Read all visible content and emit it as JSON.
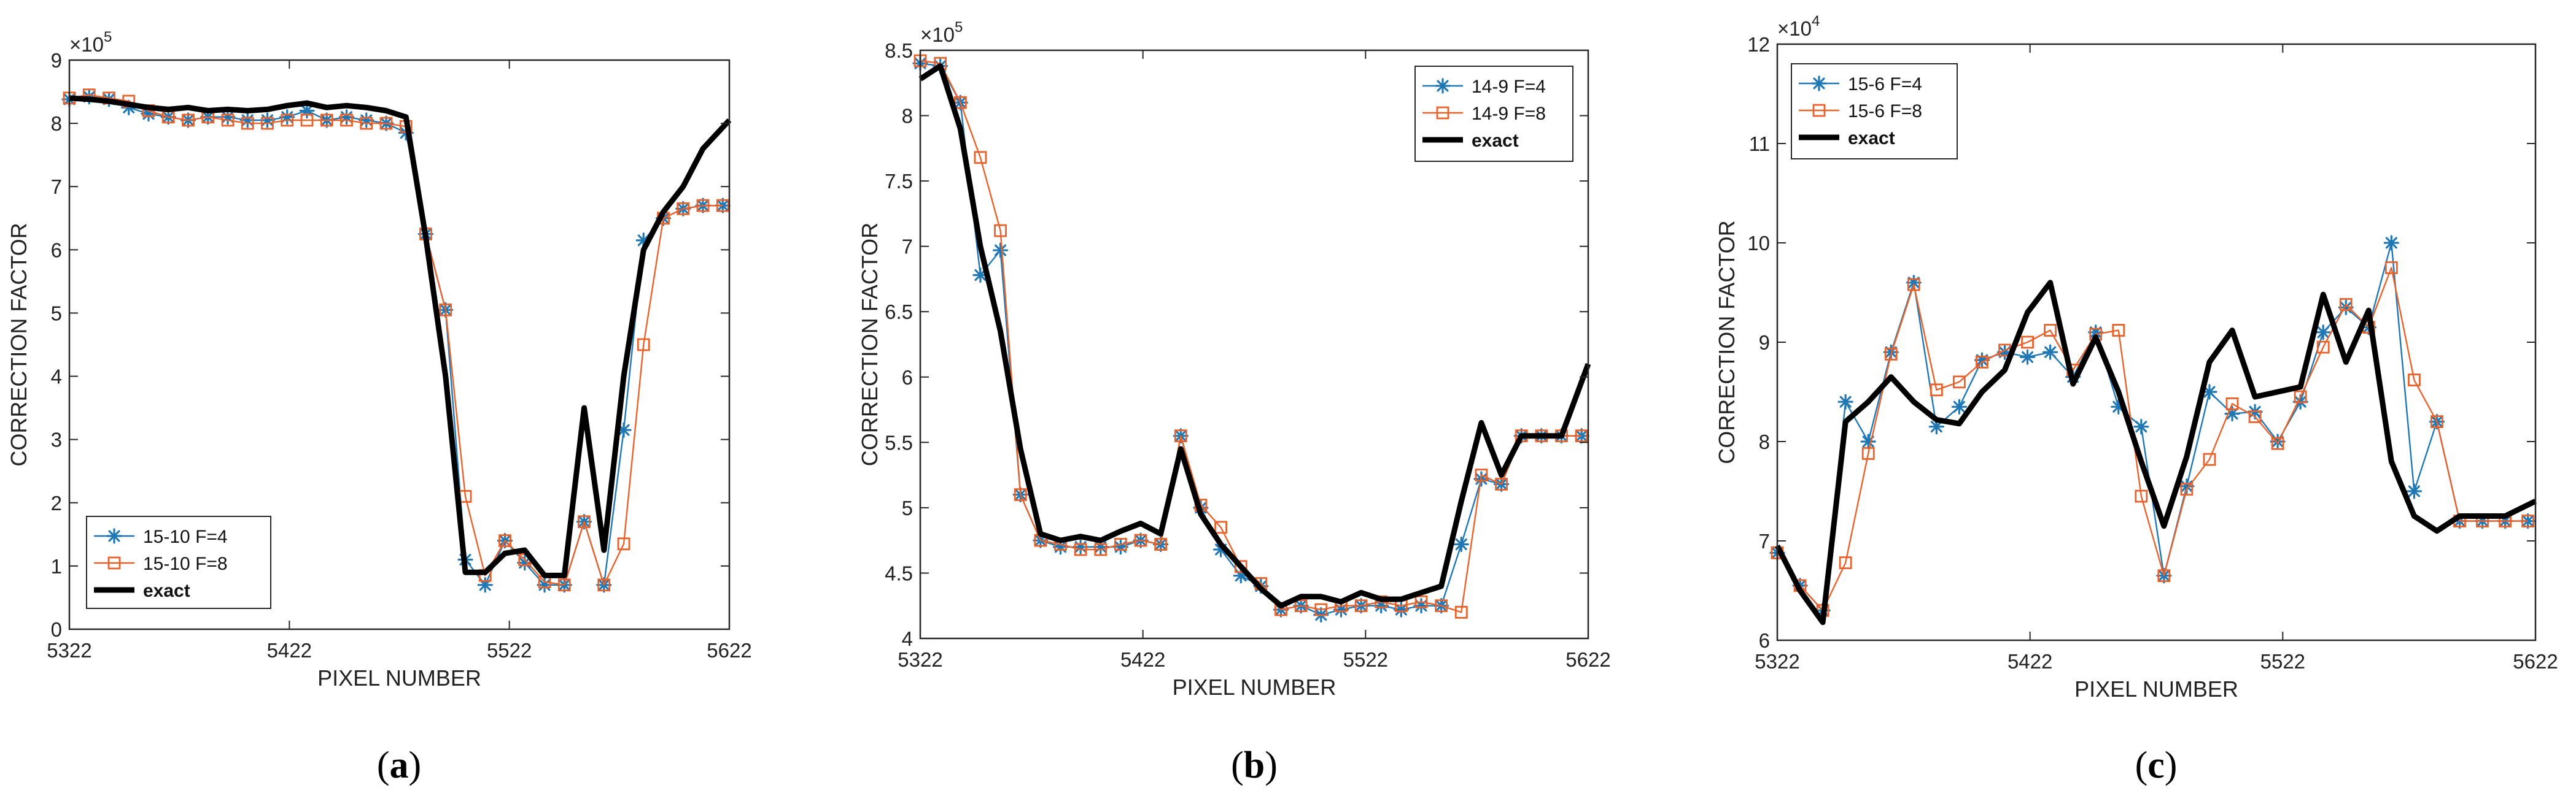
{
  "colors": {
    "f4": "#1f77b4",
    "f8": "#e8622c",
    "exact": "#000000"
  },
  "chart_data": [
    {
      "type": "line",
      "caption_open": "(",
      "caption_letter": "a",
      "caption_close": ")",
      "xlabel": "PIXEL NUMBER",
      "ylabel": "CORRECTION FACTOR",
      "exponent_base": "×10",
      "exponent_power": "5",
      "xlim": [
        5322,
        5622
      ],
      "ylim": [
        0,
        9
      ],
      "xticks": [
        5322,
        5422,
        5522,
        5622
      ],
      "yticks": [
        0,
        1,
        2,
        3,
        4,
        5,
        6,
        7,
        8,
        9
      ],
      "legend_position": "bottom-left",
      "series": [
        {
          "name": "15-10 F=4",
          "marker": "star",
          "color_key": "f4",
          "x": [
            5322,
            5331,
            5340,
            5349,
            5358,
            5367,
            5376,
            5385,
            5394,
            5403,
            5412,
            5421,
            5430,
            5439,
            5448,
            5457,
            5466,
            5475,
            5484,
            5493,
            5502,
            5511,
            5520,
            5529,
            5538,
            5547,
            5556,
            5565,
            5574,
            5583,
            5592,
            5601,
            5610,
            5619
          ],
          "y": [
            8.38,
            8.42,
            8.38,
            8.25,
            8.15,
            8.1,
            8.05,
            8.1,
            8.1,
            8.05,
            8.05,
            8.1,
            8.2,
            8.05,
            8.1,
            8.05,
            8.0,
            7.85,
            6.25,
            5.05,
            1.1,
            0.7,
            1.4,
            1.05,
            0.7,
            0.7,
            1.7,
            0.7,
            3.15,
            6.15,
            6.5,
            6.65,
            6.7,
            6.7
          ]
        },
        {
          "name": "15-10 F=8",
          "marker": "square",
          "color_key": "f8",
          "x": [
            5322,
            5331,
            5340,
            5349,
            5358,
            5367,
            5376,
            5385,
            5394,
            5403,
            5412,
            5421,
            5430,
            5439,
            5448,
            5457,
            5466,
            5475,
            5484,
            5493,
            5502,
            5511,
            5520,
            5529,
            5538,
            5547,
            5556,
            5565,
            5574,
            5583,
            5592,
            5601,
            5610,
            5619
          ],
          "y": [
            8.4,
            8.45,
            8.4,
            8.35,
            8.2,
            8.1,
            8.05,
            8.1,
            8.05,
            8.0,
            8.0,
            8.05,
            8.05,
            8.05,
            8.05,
            8.0,
            8.0,
            7.95,
            6.25,
            5.05,
            2.1,
            0.85,
            1.4,
            1.1,
            0.75,
            0.7,
            1.7,
            0.7,
            1.35,
            4.5,
            6.5,
            6.65,
            6.7,
            6.7
          ]
        },
        {
          "name": "exact",
          "marker": "none",
          "color_key": "exact",
          "x": [
            5322,
            5331,
            5340,
            5349,
            5358,
            5367,
            5376,
            5385,
            5394,
            5403,
            5412,
            5421,
            5430,
            5439,
            5448,
            5457,
            5466,
            5475,
            5484,
            5493,
            5502,
            5511,
            5520,
            5529,
            5538,
            5547,
            5556,
            5565,
            5574,
            5583,
            5592,
            5601,
            5610,
            5622
          ],
          "y": [
            8.4,
            8.38,
            8.35,
            8.3,
            8.25,
            8.22,
            8.25,
            8.2,
            8.22,
            8.2,
            8.22,
            8.28,
            8.32,
            8.25,
            8.28,
            8.25,
            8.2,
            8.1,
            6.2,
            4.0,
            0.9,
            0.9,
            1.2,
            1.25,
            0.85,
            0.85,
            3.5,
            1.25,
            4.0,
            6.0,
            6.6,
            7.0,
            7.6,
            8.05
          ]
        }
      ]
    },
    {
      "type": "line",
      "caption_open": "(",
      "caption_letter": "b",
      "caption_close": ")",
      "xlabel": "PIXEL NUMBER",
      "ylabel": "CORRECTION FACTOR",
      "exponent_base": "×10",
      "exponent_power": "5",
      "xlim": [
        5322,
        5622
      ],
      "ylim": [
        4,
        8.5
      ],
      "xticks": [
        5322,
        5422,
        5522,
        5622
      ],
      "yticks": [
        4,
        4.5,
        5,
        5.5,
        6,
        6.5,
        7,
        7.5,
        8,
        8.5
      ],
      "ytick_labels": [
        "4",
        "4.5",
        "5",
        "5.5",
        "6",
        "6.5",
        "7",
        "7.5",
        "8",
        "8.5"
      ],
      "legend_position": "top-right",
      "series": [
        {
          "name": "14-9 F=4",
          "marker": "star",
          "color_key": "f4",
          "x": [
            5322,
            5331,
            5340,
            5349,
            5358,
            5367,
            5376,
            5385,
            5394,
            5403,
            5412,
            5421,
            5430,
            5439,
            5448,
            5457,
            5466,
            5475,
            5484,
            5493,
            5502,
            5511,
            5520,
            5529,
            5538,
            5547,
            5556,
            5565,
            5574,
            5583,
            5592,
            5601,
            5610,
            5619
          ],
          "y": [
            8.4,
            8.38,
            8.1,
            6.78,
            6.97,
            5.1,
            4.75,
            4.7,
            4.7,
            4.7,
            4.7,
            4.75,
            4.72,
            5.55,
            5.0,
            4.68,
            4.48,
            4.4,
            4.22,
            4.25,
            4.18,
            4.22,
            4.25,
            4.25,
            4.22,
            4.25,
            4.25,
            4.72,
            5.22,
            5.18,
            5.55,
            5.55,
            5.55,
            5.55
          ]
        },
        {
          "name": "14-9 F=8",
          "marker": "square",
          "color_key": "f8",
          "x": [
            5322,
            5331,
            5340,
            5349,
            5358,
            5367,
            5376,
            5385,
            5394,
            5403,
            5412,
            5421,
            5430,
            5439,
            5448,
            5457,
            5466,
            5475,
            5484,
            5493,
            5502,
            5511,
            5520,
            5529,
            5538,
            5547,
            5556,
            5565,
            5574,
            5583,
            5592,
            5601,
            5610,
            5619
          ],
          "y": [
            8.42,
            8.4,
            8.1,
            7.68,
            7.12,
            5.1,
            4.75,
            4.72,
            4.68,
            4.68,
            4.72,
            4.75,
            4.72,
            5.55,
            5.02,
            4.85,
            4.55,
            4.42,
            4.22,
            4.25,
            4.22,
            4.25,
            4.25,
            4.28,
            4.25,
            4.28,
            4.25,
            4.2,
            5.25,
            5.18,
            5.55,
            5.55,
            5.55,
            5.55
          ]
        },
        {
          "name": "exact",
          "marker": "none",
          "color_key": "exact",
          "x": [
            5322,
            5331,
            5340,
            5349,
            5358,
            5367,
            5376,
            5385,
            5394,
            5403,
            5412,
            5421,
            5430,
            5439,
            5448,
            5457,
            5466,
            5475,
            5484,
            5493,
            5502,
            5511,
            5520,
            5529,
            5538,
            5547,
            5556,
            5565,
            5574,
            5583,
            5592,
            5601,
            5610,
            5622
          ],
          "y": [
            8.28,
            8.38,
            7.9,
            7.0,
            6.35,
            5.45,
            4.8,
            4.75,
            4.78,
            4.75,
            4.82,
            4.88,
            4.8,
            5.45,
            4.95,
            4.72,
            4.55,
            4.38,
            4.25,
            4.32,
            4.32,
            4.28,
            4.35,
            4.3,
            4.3,
            4.35,
            4.4,
            5.05,
            5.65,
            5.25,
            5.55,
            5.55,
            5.55,
            6.1
          ]
        }
      ]
    },
    {
      "type": "line",
      "caption_open": "(",
      "caption_letter": "c",
      "caption_close": ")",
      "xlabel": "PIXEL NUMBER",
      "ylabel": "CORRECTION FACTOR",
      "exponent_base": "×10",
      "exponent_power": "4",
      "xlim": [
        5322,
        5622
      ],
      "ylim": [
        6,
        12
      ],
      "xticks": [
        5322,
        5422,
        5522,
        5622
      ],
      "yticks": [
        6,
        7,
        8,
        9,
        10,
        11,
        12
      ],
      "legend_position": "top-left",
      "series": [
        {
          "name": "15-6 F=4",
          "marker": "star",
          "color_key": "f4",
          "x": [
            5322,
            5331,
            5340,
            5349,
            5358,
            5367,
            5376,
            5385,
            5394,
            5403,
            5412,
            5421,
            5430,
            5439,
            5448,
            5457,
            5466,
            5475,
            5484,
            5493,
            5502,
            5511,
            5520,
            5529,
            5538,
            5547,
            5556,
            5565,
            5574,
            5583,
            5592,
            5601,
            5610,
            5619
          ],
          "y": [
            6.88,
            6.55,
            6.3,
            8.4,
            8.0,
            8.9,
            9.6,
            8.15,
            8.35,
            8.82,
            8.9,
            8.85,
            8.9,
            8.65,
            9.1,
            8.35,
            8.15,
            6.65,
            7.55,
            8.5,
            8.28,
            8.3,
            8.0,
            8.4,
            9.1,
            9.35,
            9.15,
            10.0,
            7.5,
            8.2,
            7.2,
            7.2,
            7.2,
            7.2
          ]
        },
        {
          "name": "15-6 F=8",
          "marker": "square",
          "color_key": "f8",
          "x": [
            5322,
            5331,
            5340,
            5349,
            5358,
            5367,
            5376,
            5385,
            5394,
            5403,
            5412,
            5421,
            5430,
            5439,
            5448,
            5457,
            5466,
            5475,
            5484,
            5493,
            5502,
            5511,
            5520,
            5529,
            5538,
            5547,
            5556,
            5565,
            5574,
            5583,
            5592,
            5601,
            5610,
            5619
          ],
          "y": [
            6.88,
            6.55,
            6.3,
            6.78,
            7.88,
            8.88,
            9.58,
            8.52,
            8.6,
            8.8,
            8.92,
            9.0,
            9.12,
            8.72,
            9.08,
            9.12,
            7.45,
            6.65,
            7.52,
            7.82,
            8.38,
            8.25,
            7.98,
            8.45,
            8.95,
            9.38,
            9.15,
            9.75,
            8.62,
            8.2,
            7.2,
            7.2,
            7.2,
            7.2
          ]
        },
        {
          "name": "exact",
          "marker": "none",
          "color_key": "exact",
          "x": [
            5322,
            5331,
            5340,
            5349,
            5358,
            5367,
            5376,
            5385,
            5394,
            5403,
            5412,
            5421,
            5430,
            5439,
            5448,
            5457,
            5466,
            5475,
            5484,
            5493,
            5502,
            5511,
            5520,
            5529,
            5538,
            5547,
            5556,
            5565,
            5574,
            5583,
            5592,
            5601,
            5610,
            5622
          ],
          "y": [
            6.95,
            6.5,
            6.18,
            8.2,
            8.4,
            8.65,
            8.4,
            8.22,
            8.18,
            8.5,
            8.72,
            9.3,
            9.6,
            8.58,
            9.05,
            8.5,
            7.8,
            7.15,
            7.85,
            8.8,
            9.12,
            8.45,
            8.5,
            8.55,
            9.48,
            8.8,
            9.32,
            7.8,
            7.25,
            7.1,
            7.25,
            7.25,
            7.25,
            7.4
          ]
        }
      ]
    }
  ]
}
